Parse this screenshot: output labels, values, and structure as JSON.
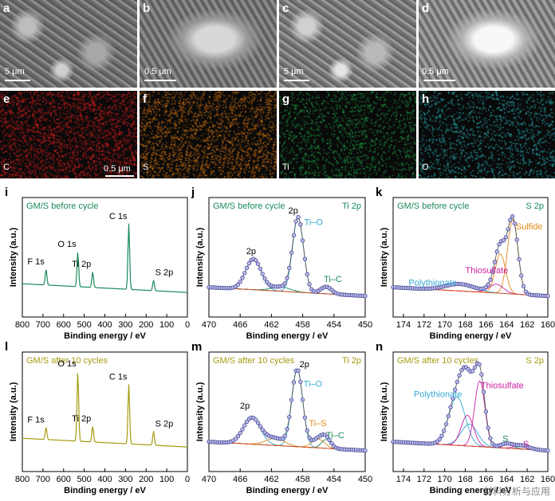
{
  "micrographs": [
    {
      "letter": "a",
      "scale": "5 μm"
    },
    {
      "letter": "b",
      "scale": "0.5 μm"
    },
    {
      "letter": "c",
      "scale": "5 μm"
    },
    {
      "letter": "d",
      "scale": "0.5 μm"
    }
  ],
  "maps": [
    {
      "letter": "e",
      "element": "C",
      "scale": "0.5 μm",
      "color": "#d42020"
    },
    {
      "letter": "f",
      "element": "S",
      "scale": "",
      "color": "#e07a14"
    },
    {
      "letter": "g",
      "element": "Ti",
      "scale": "",
      "color": "#22b04a"
    },
    {
      "letter": "h",
      "element": "O",
      "scale": "",
      "color": "#2cc0c8"
    }
  ],
  "colors": {
    "green": "#1a8a5a",
    "olive": "#a59b12",
    "teal": "#1a7a6a",
    "magenta": "#cc1fa0",
    "orange": "#e08a1a",
    "lightblue": "#35a9d6"
  },
  "chart_data": [
    {
      "letter": "i",
      "type": "line",
      "condition": "GM/S before cycle",
      "xlabel": "Binding energy / eV",
      "ylabel": "Intensity (a.u.)",
      "xlim": [
        800,
        0
      ],
      "xticks": [
        800,
        700,
        600,
        500,
        400,
        300,
        200,
        100,
        0
      ],
      "peaks": [
        {
          "label": "F 1s",
          "x": 685
        },
        {
          "label": "O 1s",
          "x": 531
        },
        {
          "label": "Ti 2p",
          "x": 459
        },
        {
          "label": "C 1s",
          "x": 284
        },
        {
          "label": "S 2p",
          "x": 164
        }
      ]
    },
    {
      "letter": "j",
      "type": "line",
      "condition": "GM/S before cycle",
      "region": "Ti 2p",
      "xlabel": "Binding energy / eV",
      "ylabel": "Intensity (a.u.)",
      "xlim": [
        470,
        450
      ],
      "xticks": [
        470,
        466,
        462,
        458,
        454,
        450
      ],
      "annotations": [
        "2p1/2",
        "2p3/2",
        "Ti–O",
        "Ti–C"
      ],
      "components": [
        {
          "name": "Ti–O",
          "center": 458.6
        },
        {
          "name": "Ti–C",
          "center": 455.0
        }
      ]
    },
    {
      "letter": "k",
      "type": "line",
      "condition": "GM/S before cycle",
      "region": "S 2p",
      "xlabel": "Binding energy / eV",
      "ylabel": "Intensity (a.u.)",
      "xlim": [
        175,
        160
      ],
      "xticks": [
        174,
        172,
        170,
        168,
        166,
        164,
        162,
        160
      ],
      "annotations": [
        "Polythionate",
        "Thiosulfate",
        "Sulfide"
      ],
      "components": [
        {
          "name": "Sulfide",
          "center": 163.5
        },
        {
          "name": "Thiosulfate",
          "center": 164.5
        },
        {
          "name": "Polythionate",
          "center": 168.5
        }
      ]
    },
    {
      "letter": "l",
      "type": "line",
      "condition": "GM/S after 10 cycles",
      "xlabel": "Binding energy / eV",
      "ylabel": "Intensity (a.u.)",
      "xlim": [
        800,
        0
      ],
      "xticks": [
        800,
        700,
        600,
        500,
        400,
        300,
        200,
        100,
        0
      ],
      "peaks": [
        {
          "label": "F 1s",
          "x": 685
        },
        {
          "label": "O 1s",
          "x": 531
        },
        {
          "label": "Ti 2p",
          "x": 459
        },
        {
          "label": "C 1s",
          "x": 284
        },
        {
          "label": "S 2p",
          "x": 164
        }
      ]
    },
    {
      "letter": "m",
      "type": "line",
      "condition": "GM/S after 10 cycles",
      "region": "Ti 2p",
      "xlabel": "Binding energy / eV",
      "ylabel": "Intensity (a.u.)",
      "xlim": [
        470,
        450
      ],
      "xticks": [
        470,
        466,
        462,
        458,
        454,
        450
      ],
      "annotations": [
        "2p1/2",
        "2p3/2",
        "Ti–O",
        "Ti–S",
        "Ti–C"
      ],
      "components": [
        {
          "name": "Ti–O",
          "center": 458.7
        },
        {
          "name": "Ti–S",
          "center": 456.0
        },
        {
          "name": "Ti–C",
          "center": 455.0
        }
      ]
    },
    {
      "letter": "n",
      "type": "line",
      "condition": "GM/S after 10 cycles",
      "region": "S 2p",
      "xlabel": "Binding energy / eV",
      "ylabel": "Intensity (a.u.)",
      "xlim": [
        175,
        160
      ],
      "xticks": [
        174,
        172,
        170,
        168,
        166,
        164,
        162,
        160
      ],
      "annotations": [
        "Polythionate",
        "Thiosulfate",
        "S80",
        "ST−1"
      ],
      "components": [
        {
          "name": "Polythionate",
          "center": 168.5
        },
        {
          "name": "Thiosulfate",
          "center": 167.0
        },
        {
          "name": "S80",
          "center": 164.0
        },
        {
          "name": "ST−1",
          "center": 162.5
        }
      ]
    }
  ],
  "watermark": "材料分析与应用"
}
